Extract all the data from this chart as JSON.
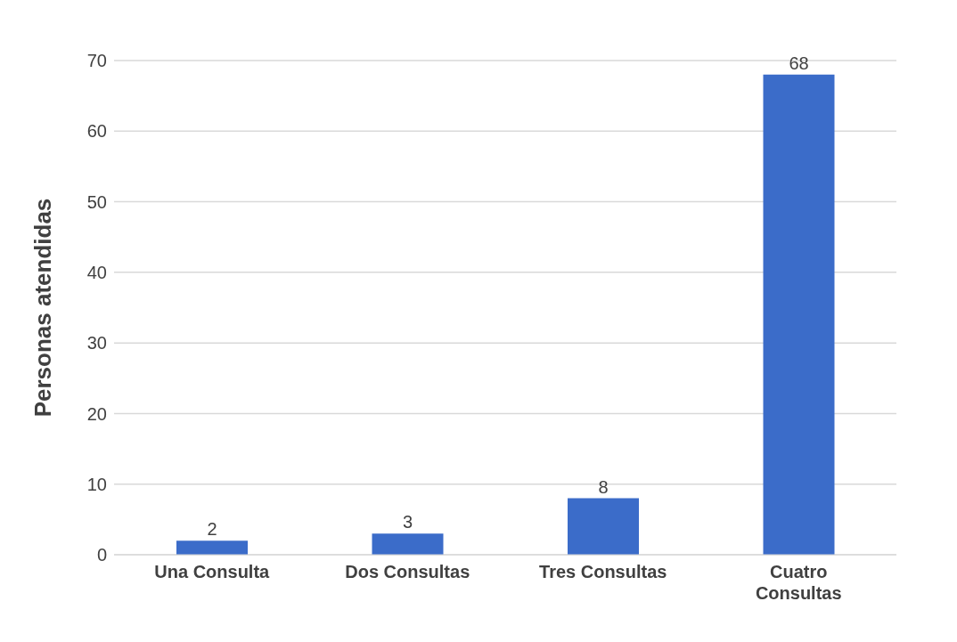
{
  "chart_data": {
    "type": "bar",
    "ylabel": "Personas atendidas",
    "categories": [
      "Una Consulta",
      "Dos Consultas",
      "Tres Consultas",
      "Cuatro Consultas"
    ],
    "values": [
      2,
      3,
      8,
      68
    ],
    "color": "#3b6cc9",
    "ylim": [
      0,
      70
    ],
    "yticks": [
      0,
      10,
      20,
      30,
      40,
      50,
      60,
      70
    ],
    "grid": "y",
    "data_labels": true
  }
}
